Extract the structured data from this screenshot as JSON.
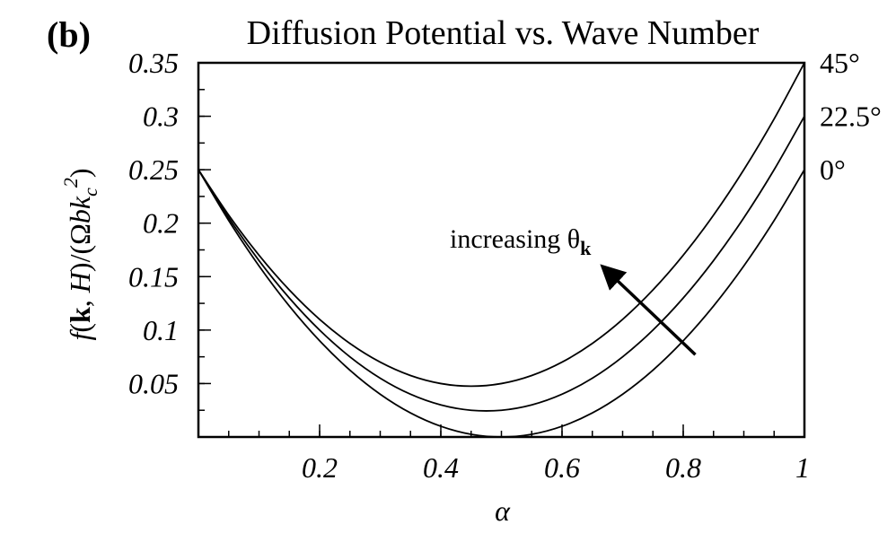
{
  "panel_label": "(b)",
  "chart_data": {
    "type": "line",
    "title": "Diffusion Potential vs. Wave Number",
    "xlabel": "α",
    "ylabel_parts": {
      "a": "f",
      "b": "(",
      "c": "k",
      "d": ", ",
      "e": "H",
      "f": ")/(Ω",
      "g": "bk",
      "h": "c",
      "i": "2",
      "j": ")"
    },
    "xlim": [
      0,
      1
    ],
    "ylim": [
      0,
      0.35
    ],
    "x_ticks": [
      0.2,
      0.4,
      0.6,
      0.8,
      1.0
    ],
    "x_tick_labels": [
      "0.2",
      "0.4",
      "0.6",
      "0.8",
      "1"
    ],
    "y_ticks": [
      0.05,
      0.1,
      0.15,
      0.2,
      0.25,
      0.3,
      0.35
    ],
    "y_tick_labels": [
      "0.05",
      "0.1",
      "0.15",
      "0.2",
      "0.25",
      "0.3",
      "0.35"
    ],
    "x_minor_step": 0.05,
    "y_minor_step": 0.025,
    "series": [
      {
        "name": "0°",
        "x": [
          0,
          0.05,
          0.1,
          0.15,
          0.2,
          0.25,
          0.3,
          0.35,
          0.4,
          0.45,
          0.5,
          0.55,
          0.6,
          0.65,
          0.7,
          0.75,
          0.8,
          0.85,
          0.9,
          0.95,
          1.0
        ],
        "y": [
          0.25,
          0.2025,
          0.16,
          0.1225,
          0.09,
          0.0625,
          0.04,
          0.0225,
          0.01,
          0.0025,
          0.0,
          0.0025,
          0.01,
          0.0225,
          0.04,
          0.0625,
          0.09,
          0.1225,
          0.16,
          0.2025,
          0.25
        ]
      },
      {
        "name": "22.5°",
        "x": [
          0,
          0.05,
          0.1,
          0.15,
          0.2,
          0.25,
          0.3,
          0.35,
          0.4,
          0.45,
          0.5,
          0.55,
          0.6,
          0.65,
          0.7,
          0.75,
          0.8,
          0.85,
          0.9,
          0.95,
          1.0
        ],
        "y": [
          0.25,
          0.205,
          0.165,
          0.13,
          0.1,
          0.075,
          0.055,
          0.04,
          0.03,
          0.025,
          0.025,
          0.03,
          0.04,
          0.055,
          0.075,
          0.1,
          0.13,
          0.165,
          0.205,
          0.25,
          0.3
        ]
      },
      {
        "name": "45°",
        "x": [
          0,
          0.05,
          0.1,
          0.15,
          0.2,
          0.25,
          0.3,
          0.35,
          0.4,
          0.45,
          0.5,
          0.55,
          0.6,
          0.65,
          0.7,
          0.75,
          0.8,
          0.85,
          0.9,
          0.95,
          1.0
        ],
        "y": [
          0.25,
          0.2075,
          0.17,
          0.1375,
          0.11,
          0.0875,
          0.07,
          0.0575,
          0.05,
          0.0475,
          0.05,
          0.0575,
          0.07,
          0.0875,
          0.11,
          0.1375,
          0.17,
          0.2075,
          0.25,
          0.2975,
          0.35
        ]
      }
    ],
    "annotation": {
      "text": "increasing θ",
      "subscript": "k",
      "arrow_from": [
        0.82,
        0.077
      ],
      "arrow_to": [
        0.66,
        0.162
      ]
    },
    "grid": false,
    "legend": "right"
  }
}
